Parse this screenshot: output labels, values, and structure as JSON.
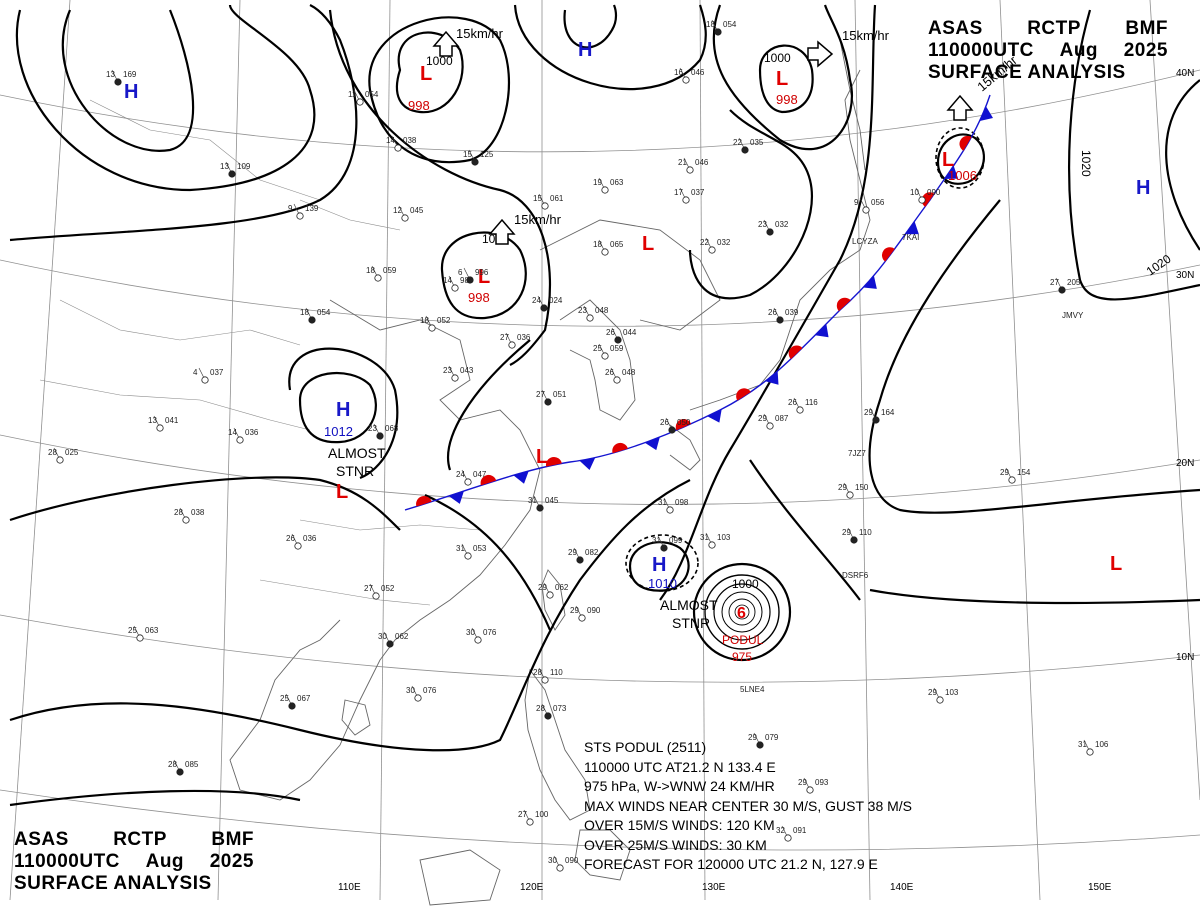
{
  "header": {
    "line1": [
      "ASAS",
      "RCTP",
      "BMF"
    ],
    "line2": [
      "110000UTC",
      "Aug",
      "2025"
    ],
    "line3": "SURFACE ANALYSIS"
  },
  "colors": {
    "high": "#1818c8",
    "low": "#e00000",
    "isobar": "#000000",
    "grid": "#888888",
    "coast": "#555555",
    "front_warm": "#e00000",
    "front_cold": "#1010d0"
  },
  "grid": {
    "lat_labels": [
      "40N",
      "30N",
      "20N",
      "10N"
    ],
    "lon_labels": [
      "110E",
      "120E",
      "130E",
      "140E",
      "150E"
    ]
  },
  "pressure_centers": [
    {
      "id": "h-nw",
      "type": "H",
      "value": ""
    },
    {
      "id": "h-north",
      "type": "H",
      "value": ""
    },
    {
      "id": "h-east",
      "type": "H",
      "value": ""
    },
    {
      "id": "l-mongolia",
      "type": "L",
      "value": "998"
    },
    {
      "id": "l-manchuria",
      "type": "L",
      "value": ""
    },
    {
      "id": "l-north",
      "type": "L",
      "value": "998"
    },
    {
      "id": "l-siberia",
      "type": "L",
      "value": "998"
    },
    {
      "id": "l-japan-sea-front",
      "type": "L",
      "value": "1006"
    },
    {
      "id": "h-china",
      "type": "H",
      "value": "1012"
    },
    {
      "id": "l-china-w",
      "type": "L",
      "value": ""
    },
    {
      "id": "l-yangtze",
      "type": "L",
      "value": ""
    },
    {
      "id": "h-ryukyu",
      "type": "H",
      "value": "1010"
    },
    {
      "id": "l-sw-pacific",
      "type": "L",
      "value": ""
    }
  ],
  "isobar_labels": [
    "1000",
    "1000",
    "1000",
    "1020",
    "1020",
    "1000"
  ],
  "annotations": {
    "almost_stnr": [
      "ALMOST",
      "STNR"
    ],
    "movements": [
      "15km/hr",
      "15km/hr",
      "15km/hr",
      "15km/hr"
    ]
  },
  "typhoon": {
    "symbol": "6",
    "name": "PODUL",
    "pressure": "975"
  },
  "storm_info": {
    "line1": "STS  PODUL  (2511)",
    "line2": "110000 UTC  AT21.2 N  133.4 E",
    "line3": "975 hPa, W->WNW  24 KM/HR",
    "line4": "MAX WINDS NEAR CENTER 30 M/S, GUST 38 M/S",
    "line5": "OVER 15M/S WINDS: 120 KM",
    "line6": "OVER 25M/S WINDS: 30 KM",
    "line7": "FORECAST FOR 120000 UTC 21.2 N, 127.9 E"
  },
  "station_plots": [
    {
      "t": "13",
      "p": "169"
    },
    {
      "t": "11",
      "p": "054"
    },
    {
      "t": "14",
      "p": "038"
    },
    {
      "t": "13",
      "p": "109"
    },
    {
      "t": "9",
      "p": "139"
    },
    {
      "t": "12",
      "p": "045"
    },
    {
      "t": "15",
      "p": "125"
    },
    {
      "t": "15",
      "p": "061"
    },
    {
      "t": "19",
      "p": "063"
    },
    {
      "t": "18",
      "p": "054"
    },
    {
      "t": "16",
      "p": "046"
    },
    {
      "t": "21",
      "p": "046"
    },
    {
      "t": "22",
      "p": "035"
    },
    {
      "t": "17",
      "p": "037"
    },
    {
      "t": "22",
      "p": "032"
    },
    {
      "t": "23",
      "p": "032"
    },
    {
      "t": "18",
      "p": "065"
    },
    {
      "t": "18",
      "p": "059"
    },
    {
      "t": "18",
      "p": "054"
    },
    {
      "t": "18",
      "p": "052"
    },
    {
      "t": "14",
      "p": "988"
    },
    {
      "t": "24",
      "p": "024"
    },
    {
      "t": "23",
      "p": "048"
    },
    {
      "t": "27",
      "p": "036"
    },
    {
      "t": "26",
      "p": "044"
    },
    {
      "t": "25",
      "p": "059"
    },
    {
      "t": "26",
      "p": "048"
    },
    {
      "t": "26",
      "p": "039"
    },
    {
      "t": "4",
      "p": "037"
    },
    {
      "t": "23",
      "p": "043"
    },
    {
      "t": "27",
      "p": "051"
    },
    {
      "t": "13",
      "p": "041"
    },
    {
      "t": "14",
      "p": "036"
    },
    {
      "t": "23",
      "p": "068"
    },
    {
      "t": "28",
      "p": "025"
    },
    {
      "t": "24",
      "p": "047"
    },
    {
      "t": "26",
      "p": "050"
    },
    {
      "t": "29",
      "p": "087"
    },
    {
      "t": "26",
      "p": "116"
    },
    {
      "t": "29",
      "p": "164"
    },
    {
      "t": "29",
      "p": "154"
    },
    {
      "t": "29",
      "p": "150"
    },
    {
      "t": "29",
      "p": "110"
    },
    {
      "t": "9",
      "p": "056"
    },
    {
      "t": "10",
      "p": "090"
    },
    {
      "t": "27",
      "p": "205"
    },
    {
      "t": "28",
      "p": "038"
    },
    {
      "t": "26",
      "p": "036"
    },
    {
      "t": "31",
      "p": "045"
    },
    {
      "t": "31",
      "p": "098"
    },
    {
      "t": "31",
      "p": "053"
    },
    {
      "t": "29",
      "p": "082"
    },
    {
      "t": "29",
      "p": "062"
    },
    {
      "t": "29",
      "p": "090"
    },
    {
      "t": "31",
      "p": "099"
    },
    {
      "t": "31",
      "p": "103"
    },
    {
      "t": "27",
      "p": "052"
    },
    {
      "t": "30",
      "p": "062"
    },
    {
      "t": "30",
      "p": "076"
    },
    {
      "t": "25",
      "p": "063"
    },
    {
      "t": "25",
      "p": "067"
    },
    {
      "t": "30",
      "p": "076"
    },
    {
      "t": "28",
      "p": "110"
    },
    {
      "t": "28",
      "p": "073"
    },
    {
      "t": "29",
      "p": "103"
    },
    {
      "t": "31",
      "p": "106"
    },
    {
      "t": "28",
      "p": "085"
    },
    {
      "t": "27",
      "p": "100"
    },
    {
      "t": "30",
      "p": "090"
    },
    {
      "t": "29",
      "p": "079"
    },
    {
      "t": "29",
      "p": "093"
    },
    {
      "t": "32",
      "p": "091"
    },
    {
      "t": "6",
      "p": "996"
    }
  ],
  "station_ids": [
    "LCYZA",
    "7KAI",
    "JMVY",
    "7JZ7",
    "DSRF6",
    "5LNE4"
  ]
}
